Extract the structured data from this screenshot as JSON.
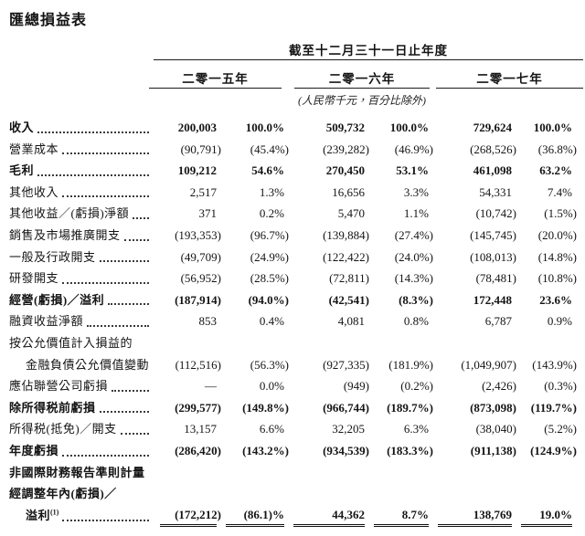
{
  "title": "匯總損益表",
  "colors": {
    "background": "#ffffff",
    "text": "#141414",
    "rule": "#1c1c1c"
  },
  "table": {
    "period_header": "截至十二月三十一日止年度",
    "year_headers": [
      "二零一五年",
      "二零一六年",
      "二零一七年"
    ],
    "unit_note": "(人民幣千元，百分比除外)",
    "rows": [
      {
        "label": "收入",
        "bold": true,
        "leaders": true,
        "values": [
          "200,003",
          "100.0%",
          "509,732",
          "100.0%",
          "729,624",
          "100.0%"
        ]
      },
      {
        "label": "營業成本",
        "leaders": true,
        "values": [
          "(90,791)",
          "(45.4%)",
          "(239,282)",
          "(46.9%)",
          "(268,526)",
          "(36.8%)"
        ]
      },
      {
        "label": "毛利",
        "bold": true,
        "leaders": true,
        "values": [
          "109,212",
          "54.6%",
          "270,450",
          "53.1%",
          "461,098",
          "63.2%"
        ]
      },
      {
        "label": "其他收入",
        "leaders": true,
        "values": [
          "2,517",
          "1.3%",
          "16,656",
          "3.3%",
          "54,331",
          "7.4%"
        ]
      },
      {
        "label": "其他收益／(虧損)淨額",
        "leaders": true,
        "values": [
          "371",
          "0.2%",
          "5,470",
          "1.1%",
          "(10,742)",
          "(1.5%)"
        ]
      },
      {
        "label": "銷售及市場推廣開支",
        "leaders": true,
        "values": [
          "(193,353)",
          "(96.7%)",
          "(139,884)",
          "(27.4%)",
          "(145,745)",
          "(20.0%)"
        ]
      },
      {
        "label": "一般及行政開支",
        "leaders": true,
        "values": [
          "(49,709)",
          "(24.9%)",
          "(122,422)",
          "(24.0%)",
          "(108,013)",
          "(14.8%)"
        ]
      },
      {
        "label": "研發開支",
        "leaders": true,
        "values": [
          "(56,952)",
          "(28.5%)",
          "(72,811)",
          "(14.3%)",
          "(78,481)",
          "(10.8%)"
        ]
      },
      {
        "label": "經營(虧損)／溢利",
        "bold": true,
        "leaders": true,
        "values": [
          "(187,914)",
          "(94.0%)",
          "(42,541)",
          "(8.3%)",
          "172,448",
          "23.6%"
        ]
      },
      {
        "label": "融資收益淨額",
        "leaders": true,
        "values": [
          "853",
          "0.4%",
          "4,081",
          "0.8%",
          "6,787",
          "0.9%"
        ]
      },
      {
        "label": "按公允價值計入損益的",
        "label_only": true
      },
      {
        "label": "金融負債公允價值變動",
        "indent": true,
        "leaders": true,
        "values": [
          "(112,516)",
          "(56.3%)",
          "(927,335)",
          "(181.9%)",
          "(1,049,907)",
          "(143.9%)"
        ]
      },
      {
        "label": "應佔聯營公司虧損",
        "leaders": true,
        "values": [
          "—",
          "0.0%",
          "(949)",
          "(0.2%)",
          "(2,426)",
          "(0.3%)"
        ]
      },
      {
        "label": "除所得税前虧損",
        "bold": true,
        "leaders": true,
        "values": [
          "(299,577)",
          "(149.8%)",
          "(966,744)",
          "(189.7%)",
          "(873,098)",
          "(119.7%)"
        ]
      },
      {
        "label": "所得税(抵免)／開支",
        "leaders": true,
        "values": [
          "13,157",
          "6.6%",
          "32,205",
          "6.3%",
          "(38,040)",
          "(5.2%)"
        ]
      },
      {
        "label": "年度虧損",
        "bold": true,
        "leaders": true,
        "values": [
          "(286,420)",
          "(143.2%)",
          "(934,539)",
          "(183.3%)",
          "(911,138)",
          "(124.9%)"
        ]
      },
      {
        "label": "非國際財務報告準則計量",
        "bold": true,
        "label_only": true
      },
      {
        "label": "經調整年內(虧損)／",
        "bold": true,
        "label_only": true
      },
      {
        "label": "溢利",
        "sup": "(1)",
        "bold": true,
        "indent": true,
        "leaders": true,
        "double_underline": true,
        "values": [
          "(172,212)",
          "(86.1)%",
          "44,362",
          "8.7%",
          "138,769",
          "19.0%"
        ]
      }
    ]
  }
}
